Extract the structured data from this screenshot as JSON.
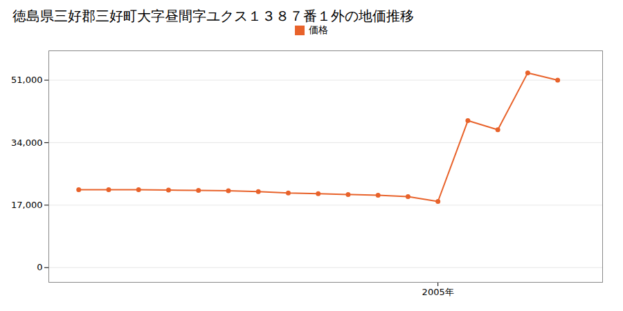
{
  "chart_data": {
    "type": "line",
    "title": "徳島県三好郡三好町大字昼間字ユクス１３８７番１外の地価推移",
    "x": [
      1993,
      1994,
      1995,
      1996,
      1997,
      1998,
      1999,
      2000,
      2001,
      2002,
      2003,
      2004,
      2005,
      2006,
      2007,
      2008,
      2009
    ],
    "series": [
      {
        "name": "価格",
        "color": "#e8622a",
        "values": [
          21200,
          21200,
          21200,
          21100,
          21000,
          20900,
          20700,
          20300,
          20100,
          19900,
          19700,
          19300,
          18000,
          40000,
          37500,
          53000,
          51000
        ]
      }
    ],
    "xlim": [
      1992.0,
      2010.5
    ],
    "xticks": [
      {
        "value": 2005,
        "label": "2005年"
      }
    ],
    "ylim": [
      -4000,
      59000
    ],
    "yticks": [
      0,
      {
        "value": 17000,
        "label": "17,000"
      },
      {
        "value": 34000,
        "label": "34,000"
      },
      {
        "value": 51000,
        "label": "51,000"
      }
    ],
    "grid": true,
    "legend": "top",
    "marker": "circle"
  }
}
